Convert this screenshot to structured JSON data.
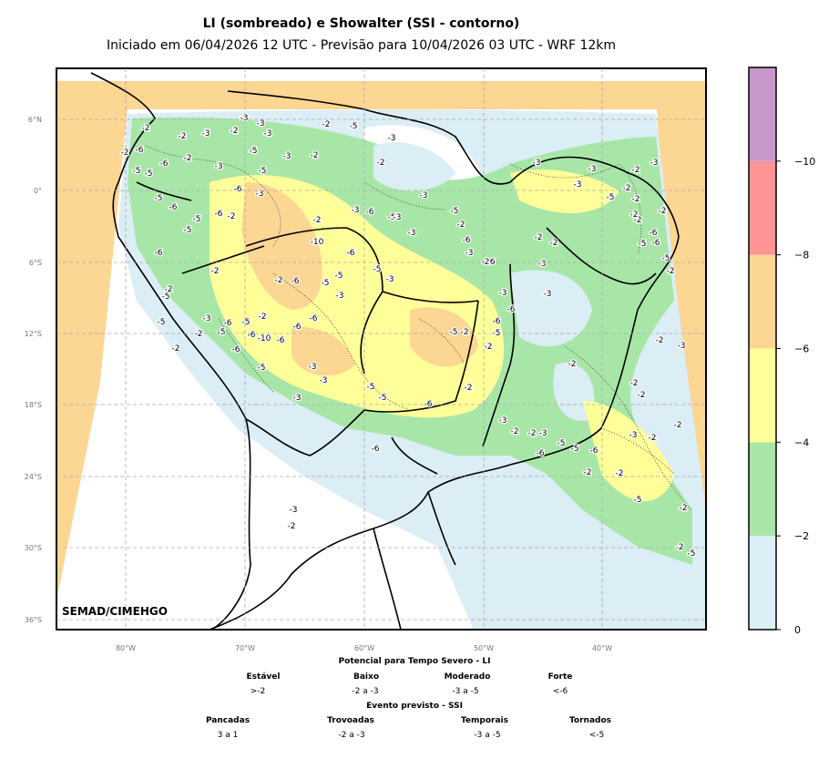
{
  "title": "LI (sombreado) e Showalter (SSI - contorno)",
  "subtitle": "Iniciado em 06/04/2026 12 UTC - Previsão para 10/04/2026 03 UTC - WRF 12km",
  "credit": "SEMAD/CIMEHGO",
  "axes": {
    "lat_ticks": [
      "6°N",
      "0°",
      "6°S",
      "12°S",
      "18°S",
      "24°S",
      "30°S",
      "36°S"
    ],
    "lon_ticks": [
      "80°W",
      "70°W",
      "60°W",
      "50°W",
      "40°W"
    ]
  },
  "colorbar": {
    "ticks": [
      "0",
      "−2",
      "−4",
      "−6",
      "−8",
      "−10"
    ],
    "colors": [
      "#dbedf5",
      "#a8e6a8",
      "#ffff99",
      "#fcd693",
      "#ff9494",
      "#c898cc"
    ]
  },
  "legend": {
    "li_title": "Potencial para Tempo Severo - LI",
    "li_categories": [
      {
        "label": "Estável",
        "value": ">-2"
      },
      {
        "label": "Baixo",
        "value": "-2 a -3"
      },
      {
        "label": "Moderado",
        "value": "-3 a -5"
      },
      {
        "label": "Forte",
        "value": "<-6"
      }
    ],
    "ssi_title": "Evento previsto - SSI",
    "ssi_categories": [
      {
        "label": "Pancadas",
        "value": "3 a 1"
      },
      {
        "label": "Trovoadas",
        "value": "-2 a -3"
      },
      {
        "label": "Temporais",
        "value": "-3 a -5"
      },
      {
        "label": "Tornados",
        "value": "<-5"
      }
    ]
  },
  "map_labels": [
    "-2",
    "-3",
    "-3",
    "-2",
    "-2",
    "-2",
    "-2",
    "-3",
    "-5",
    "-5",
    "-2",
    "-3",
    "-6",
    "-5",
    "-3",
    "-2",
    "-5",
    "-6",
    "-3",
    "-5",
    "-6",
    "-2",
    "-3",
    "-2",
    "-3",
    "-3",
    "-2",
    "-3",
    "-3",
    "-5",
    "-2",
    "-3",
    "-6",
    "-5",
    "-2",
    "-5",
    "-2",
    "-6",
    "-6",
    "-5",
    "-5",
    "-6",
    "-10",
    "-6",
    "-5",
    "-5",
    "-3",
    "-2",
    "-6",
    "-5",
    "-2",
    "-5",
    "-2",
    "-3",
    "-6",
    "-2",
    "-6",
    "-5",
    "-6",
    "-3",
    "-5",
    "-2",
    "-5",
    "-6",
    "-6",
    "-10",
    "-6",
    "-2",
    "-5",
    "-3",
    "-3",
    "-5",
    "-5",
    "-3",
    "-6",
    "-2",
    "-5",
    "-2",
    "-2",
    "-5",
    "-6",
    "-3",
    "-6",
    "-3",
    "-3",
    "-2",
    "-6",
    "-6",
    "-3",
    "-2",
    "-3",
    "-3",
    "-2",
    "-6",
    "-5",
    "-2",
    "-2",
    "-6",
    "-5",
    "-2",
    "-2",
    "-3",
    "-2",
    "-2",
    "-2",
    "-2",
    "-3",
    "-2",
    "-3",
    "-2",
    "-2",
    "-3",
    "-5",
    "-5",
    "-6",
    "-6",
    "-6",
    "-2",
    "-2",
    "-5",
    "-2",
    "-2",
    "-5",
    "-3",
    "-2",
    "-3",
    "-5",
    "-2",
    "-2",
    "-2",
    "-2",
    "-3",
    "-3",
    "-2",
    "-5",
    "-2",
    "-3",
    "-2",
    "-3"
  ]
}
